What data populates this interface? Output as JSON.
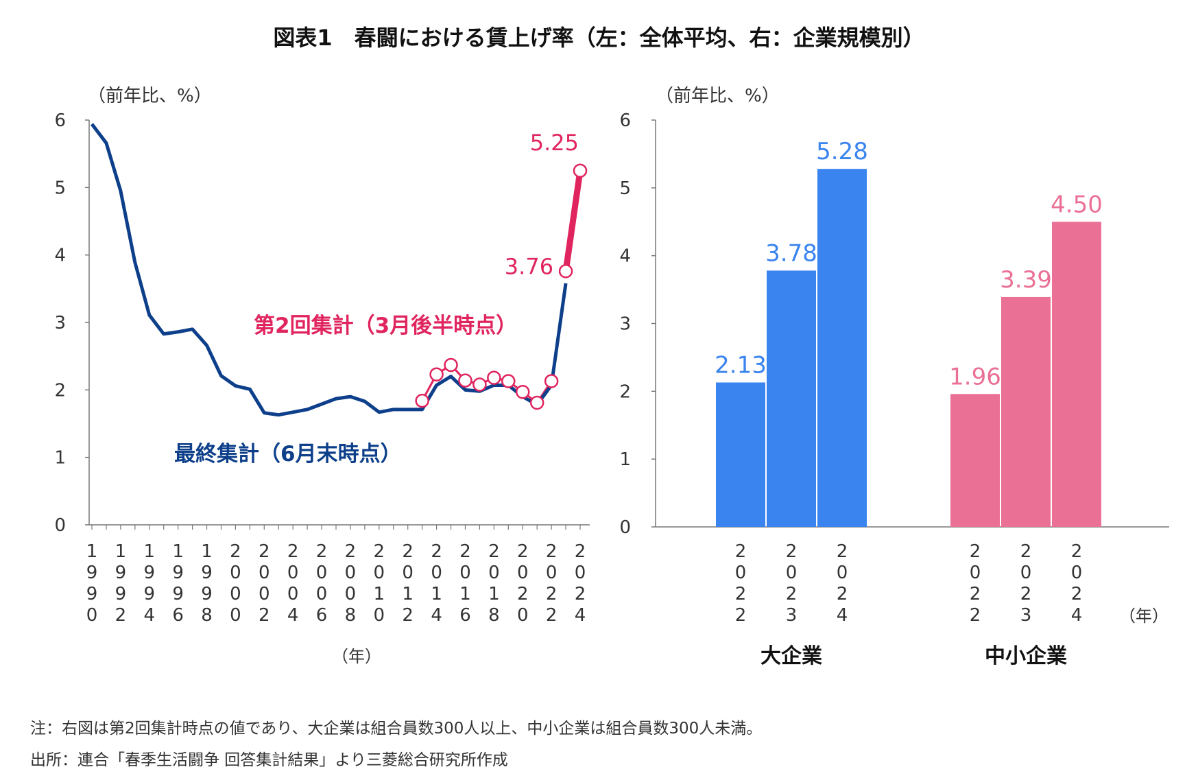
{
  "figure": {
    "title": "図表1　春闘における賃上げ率（左：全体平均、右：企業規模別）",
    "note": "注：右図は第2回集計時点の値であり、大企業は組合員数300人以上、中小企業は組合員数300人未満。",
    "source": "出所：連合「春季生活闘争 回答集計結果」より三菱総合研究所作成"
  },
  "chart_data": [
    {
      "type": "line",
      "unit_label": "（前年比、%）",
      "xlabel": "（年）",
      "ylim": [
        0,
        6
      ],
      "y_ticks": [
        "0",
        "1",
        "2",
        "3",
        "4",
        "5",
        "6"
      ],
      "x_tick_labels": [
        "1990",
        "1992",
        "1994",
        "1996",
        "1998",
        "2000",
        "2002",
        "2004",
        "2006",
        "2008",
        "2010",
        "2012",
        "2014",
        "2016",
        "2018",
        "2020",
        "2022",
        "2024"
      ],
      "x": [
        1990,
        1991,
        1992,
        1993,
        1994,
        1995,
        1996,
        1997,
        1998,
        1999,
        2000,
        2001,
        2002,
        2003,
        2004,
        2005,
        2006,
        2007,
        2008,
        2009,
        2010,
        2011,
        2012,
        2013,
        2014,
        2015,
        2016,
        2017,
        2018,
        2019,
        2020,
        2021,
        2022,
        2023,
        2024
      ],
      "series": [
        {
          "name": "最終集計（6月末時点）",
          "color": "#0d3f8a",
          "x": [
            1990,
            1991,
            1992,
            1993,
            1994,
            1995,
            1996,
            1997,
            1998,
            1999,
            2000,
            2001,
            2002,
            2003,
            2004,
            2005,
            2006,
            2007,
            2008,
            2009,
            2010,
            2011,
            2012,
            2013,
            2014,
            2015,
            2016,
            2017,
            2018,
            2019,
            2020,
            2021,
            2022,
            2023
          ],
          "values": [
            5.94,
            5.66,
            4.95,
            3.89,
            3.11,
            2.83,
            2.86,
            2.9,
            2.66,
            2.21,
            2.06,
            2.01,
            1.66,
            1.63,
            1.67,
            1.71,
            1.79,
            1.87,
            1.9,
            1.83,
            1.67,
            1.71,
            1.71,
            1.71,
            2.07,
            2.2,
            2.0,
            1.98,
            2.07,
            2.07,
            1.9,
            1.78,
            2.07,
            3.58
          ]
        },
        {
          "name": "第2回集計（3月後半時点）",
          "color": "#e0245e",
          "x": [
            2013,
            2014,
            2015,
            2016,
            2017,
            2018,
            2019,
            2020,
            2021,
            2022,
            2023,
            2024
          ],
          "values": [
            1.84,
            2.23,
            2.37,
            2.14,
            2.08,
            2.18,
            2.13,
            1.97,
            1.81,
            2.13,
            3.76,
            5.25
          ],
          "labels": [
            {
              "x": 2023,
              "value": "3.76"
            },
            {
              "x": 2024,
              "value": "5.25"
            }
          ]
        }
      ]
    },
    {
      "type": "bar",
      "unit_label": "（前年比、%）",
      "xlabel": "（年）",
      "ylim": [
        0,
        6
      ],
      "y_ticks": [
        "0",
        "1",
        "2",
        "3",
        "4",
        "5",
        "6"
      ],
      "groups": [
        {
          "name": "大企業",
          "color": "#3a84ef",
          "bars": [
            {
              "year": "2022",
              "value": 2.13,
              "label": "2.13"
            },
            {
              "year": "2023",
              "value": 3.78,
              "label": "3.78"
            },
            {
              "year": "2024",
              "value": 5.28,
              "label": "5.28"
            }
          ]
        },
        {
          "name": "中小企業",
          "color": "#ea7095",
          "bars": [
            {
              "year": "2022",
              "value": 1.96,
              "label": "1.96"
            },
            {
              "year": "2023",
              "value": 3.39,
              "label": "3.39"
            },
            {
              "year": "2024",
              "value": 4.5,
              "label": "4.50"
            }
          ]
        }
      ]
    }
  ]
}
